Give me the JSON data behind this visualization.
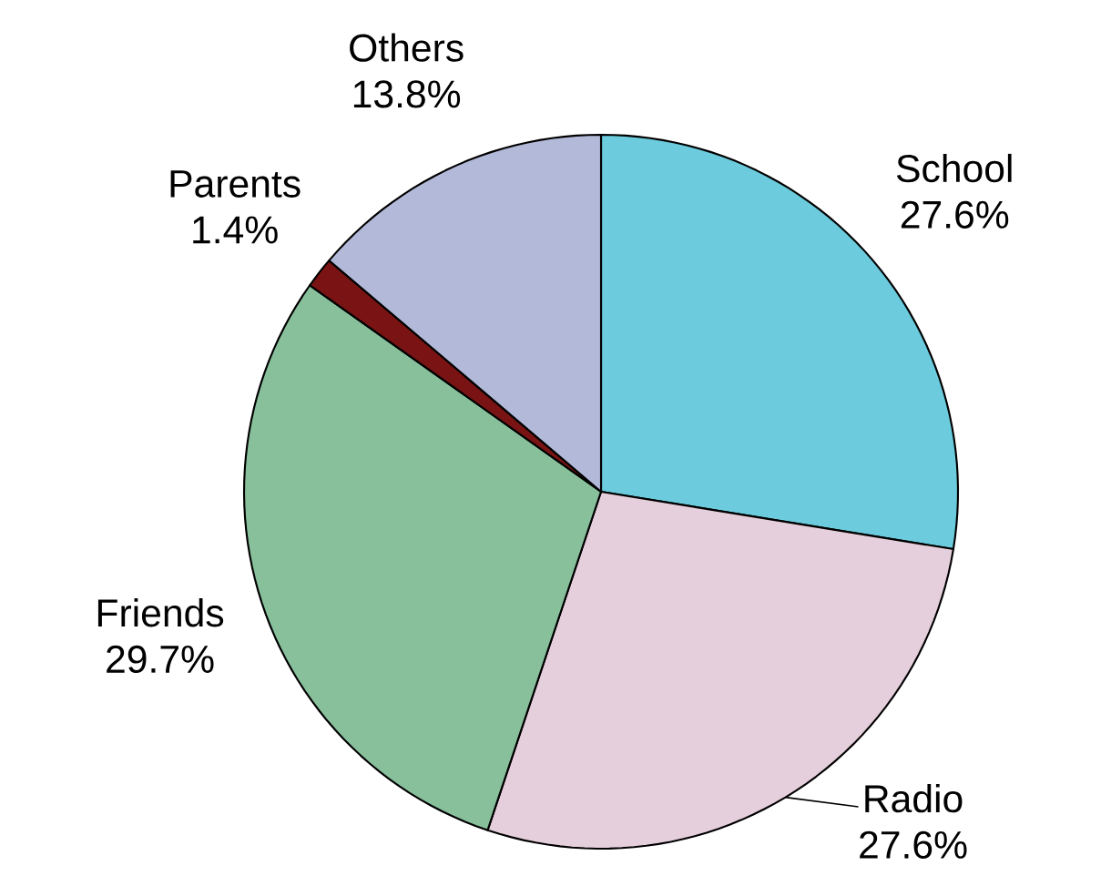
{
  "chart_data": {
    "type": "pie",
    "categories": [
      "School",
      "Radio",
      "Friends",
      "Parents",
      "Others"
    ],
    "values": [
      27.6,
      27.6,
      29.7,
      1.4,
      13.8
    ],
    "value_labels": [
      "27.6%",
      "27.6%",
      "29.7%",
      "1.4%",
      "13.8%"
    ],
    "colors": [
      "#6ccbdc",
      "#e6cfdc",
      "#88c09c",
      "#7a1414",
      "#b3b9d9"
    ]
  }
}
